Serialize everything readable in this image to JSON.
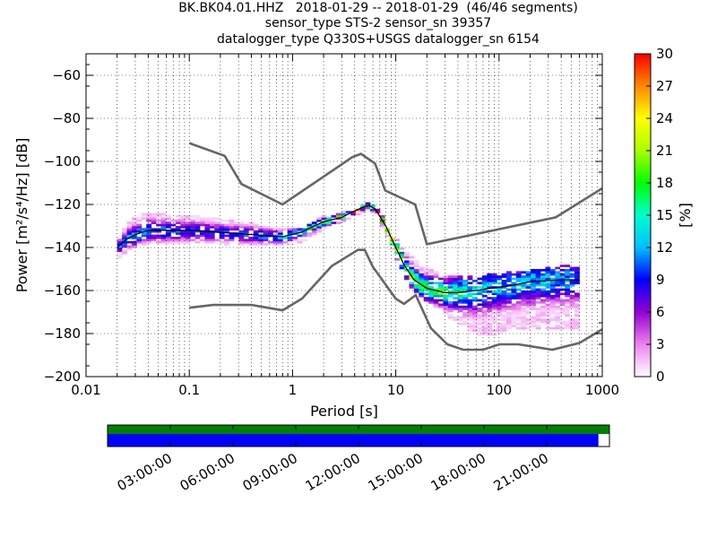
{
  "title": {
    "line1": "BK.BK04.01.HHZ   2018-01-29 -- 2018-01-29  (46/46 segments)",
    "line2": "sensor_type STS-2 sensor_sn 39357",
    "line3": "datalogger_type Q330S+USGS datalogger_sn 6154"
  },
  "chart_data": {
    "type": "heatmap",
    "subtype": "probabilistic-power-spectral-density",
    "xlabel": "Period [s]",
    "ylabel": "Power [m²/s⁴/Hz] [dB]",
    "xscale": "log",
    "xlim": [
      0.01,
      1000
    ],
    "ylim": [
      -200,
      -50
    ],
    "xticks": [
      0.01,
      0.1,
      1,
      10,
      100,
      1000
    ],
    "xtick_labels": [
      "0.01",
      "0.1",
      "1",
      "10",
      "100",
      "1000"
    ],
    "yticks": [
      -200,
      -180,
      -160,
      -140,
      -120,
      -100,
      -80,
      -60
    ],
    "ytick_labels": [
      "−200",
      "−180",
      "−160",
      "−140",
      "−120",
      "−100",
      "−80",
      "−60"
    ],
    "grid": true,
    "colorbar": {
      "label": "[%]",
      "min": 0,
      "max": 30,
      "ticks": [
        0,
        3,
        6,
        9,
        12,
        15,
        18,
        21,
        24,
        27,
        30
      ],
      "tick_labels": [
        "0",
        "3",
        "6",
        "9",
        "12",
        "15",
        "18",
        "21",
        "24",
        "27",
        "30"
      ],
      "colors": [
        "#ffffff",
        "#ee82ee",
        "#9400d3",
        "#0000ff",
        "#00bfff",
        "#00ffcc",
        "#00ff00",
        "#aaff00",
        "#ffff00",
        "#ff8800",
        "#ff0000"
      ]
    },
    "noise_models": {
      "high": {
        "period": [
          0.1,
          0.22,
          0.32,
          0.8,
          3.8,
          4.6,
          6.3,
          7.9,
          15.4,
          20,
          354,
          1000
        ],
        "db": [
          -91.5,
          -97.4,
          -110.5,
          -120,
          -98,
          -96.5,
          -101,
          -113.5,
          -120,
          -138.5,
          -126,
          -112.5
        ]
      },
      "low": {
        "period": [
          0.1,
          0.17,
          0.4,
          0.8,
          1.24,
          2.4,
          4.3,
          5,
          6,
          10,
          12,
          15.6,
          21.9,
          31.6,
          45,
          70,
          101,
          154,
          328,
          600,
          1000
        ],
        "db": [
          -168,
          -166.7,
          -166.7,
          -169.2,
          -163.7,
          -148.6,
          -141.1,
          -141.1,
          -149,
          -163.8,
          -166.2,
          -162.1,
          -177.5,
          -185,
          -187.5,
          -187.5,
          -185,
          -185,
          -187.5,
          -184.4,
          -178
        ]
      }
    },
    "mode_curve": {
      "period": [
        0.02,
        0.025,
        0.03,
        0.04,
        0.06,
        0.1,
        0.2,
        0.4,
        0.8,
        1.2,
        2,
        3,
        4,
        5,
        5.5,
        6.3,
        8,
        10,
        12,
        15,
        20,
        30,
        40,
        60,
        80,
        120,
        200,
        400,
        600
      ],
      "db": [
        -140,
        -136,
        -134,
        -132,
        -132,
        -132,
        -133,
        -134,
        -135,
        -133,
        -128,
        -126,
        -123,
        -121,
        -120.5,
        -122,
        -130,
        -140,
        -148,
        -155,
        -159,
        -161,
        -161,
        -160,
        -159,
        -158,
        -156,
        -155,
        -155
      ]
    },
    "density_bands": {
      "period": [
        0.02,
        0.025,
        0.03,
        0.04,
        0.06,
        0.1,
        0.2,
        0.4,
        0.8,
        1.2,
        2,
        3,
        4,
        5,
        5.5,
        6.3,
        8,
        10,
        12,
        15,
        20,
        30,
        40,
        60,
        80,
        120,
        200,
        400,
        600
      ],
      "db_min": [
        -145,
        -141,
        -139,
        -138,
        -138,
        -138,
        -138,
        -139,
        -139,
        -137,
        -131,
        -128,
        -125,
        -123,
        -122,
        -124,
        -133,
        -145,
        -152,
        -160,
        -165,
        -170,
        -175,
        -180,
        -181,
        -178,
        -178,
        -178,
        -177
      ],
      "db_max": [
        -137,
        -130,
        -126,
        -124,
        -125,
        -125,
        -127,
        -129,
        -132,
        -131,
        -126,
        -124,
        -122,
        -120,
        -119.5,
        -121,
        -128,
        -136,
        -141,
        -146,
        -150,
        -153,
        -153,
        -153,
        -153,
        -152,
        -151,
        -149,
        -148
      ],
      "peak_percent": [
        10,
        12,
        12,
        10,
        10,
        9,
        9,
        10,
        12,
        14,
        20,
        25,
        28,
        30,
        30,
        28,
        26,
        24,
        22,
        20,
        18,
        16,
        15,
        13,
        12,
        12,
        12,
        11,
        10
      ]
    }
  },
  "timeline": {
    "tick_labels": [
      "03:00:00",
      "06:00:00",
      "09:00:00",
      "12:00:00",
      "15:00:00",
      "18:00:00",
      "21:00:00"
    ],
    "tick_hours": [
      3,
      6,
      9,
      12,
      15,
      18,
      21
    ],
    "total_hours": 24,
    "available_fraction": 1.0,
    "processed_fraction": 0.978,
    "available_color": "#008000",
    "processed_color": "#0000ff"
  }
}
